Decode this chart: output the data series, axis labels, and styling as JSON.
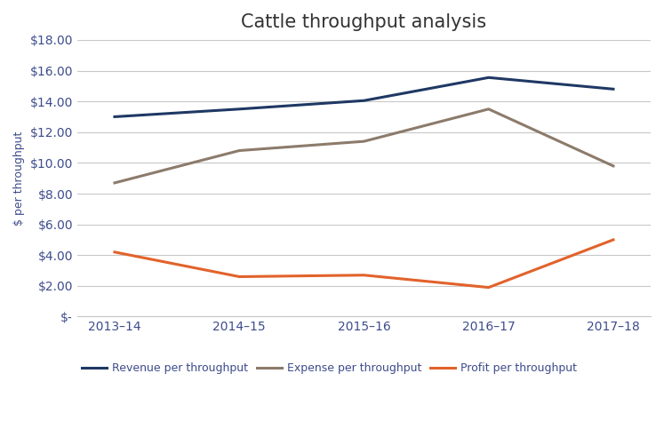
{
  "title": "Cattle throughput analysis",
  "categories": [
    "2013–14",
    "2014–15",
    "2015–16",
    "2016–17",
    "2017–18"
  ],
  "revenue": [
    13.0,
    13.5,
    14.05,
    15.55,
    14.8
  ],
  "expense": [
    8.7,
    10.8,
    11.4,
    13.5,
    9.8
  ],
  "profit": [
    4.2,
    2.6,
    2.7,
    1.9,
    5.0
  ],
  "revenue_color": "#1F3864",
  "expense_color": "#8C7B6B",
  "profit_color": "#E2622B",
  "text_color": "#3D4C8C",
  "ylabel": "$ per throughput",
  "ylim_min": 0,
  "ylim_max": 18,
  "ytick_step": 2,
  "legend_labels": [
    "Revenue per throughput",
    "Expense per throughput",
    "Profit per throughput"
  ],
  "title_fontsize": 15,
  "axis_label_fontsize": 9,
  "tick_fontsize": 10,
  "legend_fontsize": 9,
  "line_width": 2.2,
  "grid_color": "#C8C8C8",
  "background_color": "#FFFFFF"
}
